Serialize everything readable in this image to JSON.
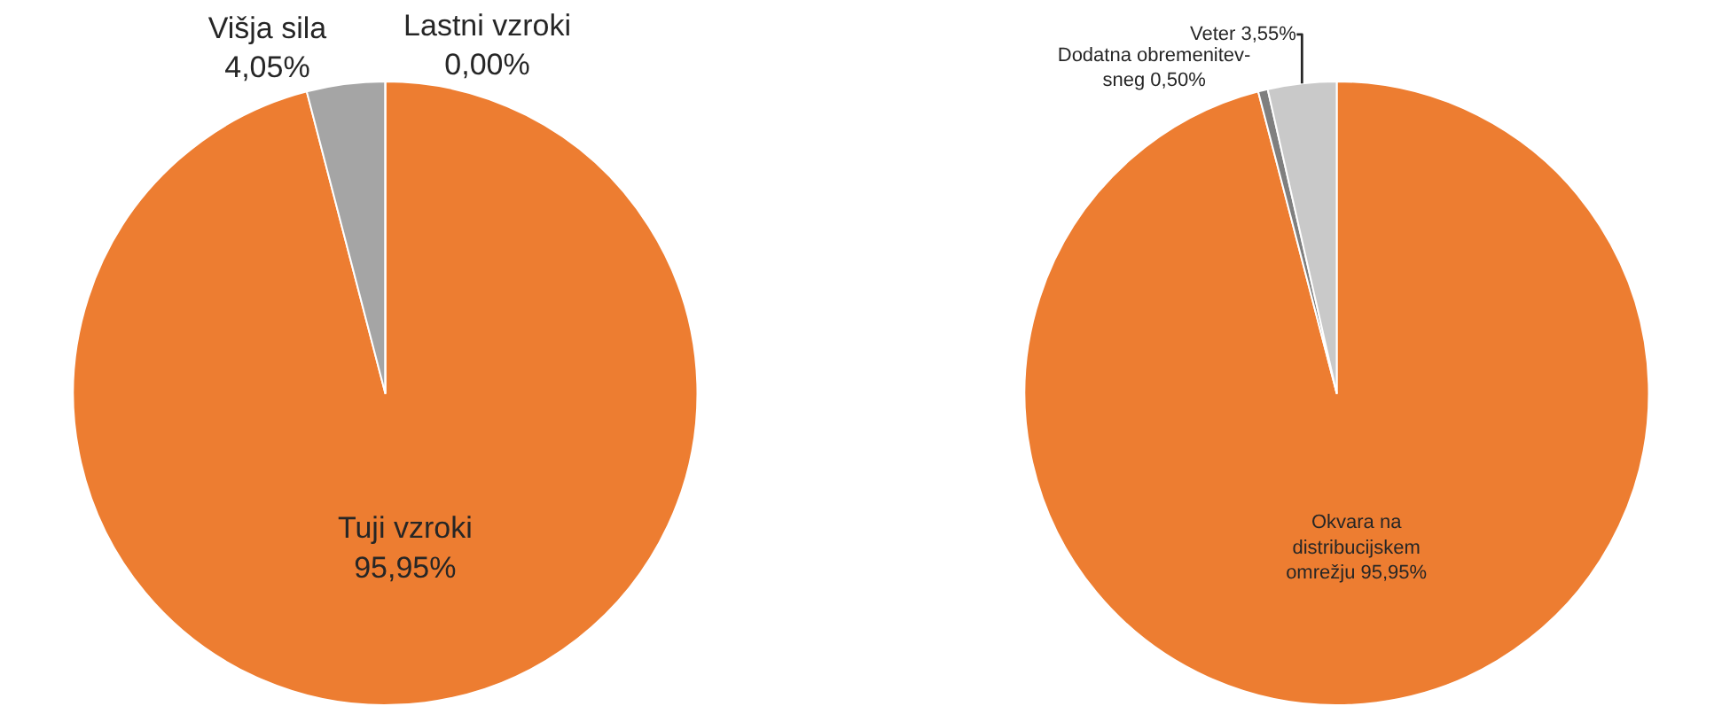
{
  "chart_data": [
    {
      "type": "pie",
      "categories": [
        "Tuji vzroki",
        "Višja sila",
        "Lastni vzroki"
      ],
      "values": [
        95.95,
        4.05,
        0.0
      ],
      "value_labels": [
        "95,95%",
        "4,05%",
        "0,00%"
      ],
      "colors": [
        "#ed7d31",
        "#a5a5a5",
        "#5b9bd5"
      ]
    },
    {
      "type": "pie",
      "categories": [
        "Okvara na distribucijskem omrežju",
        "Dodatna obremenitev-sneg",
        "Veter"
      ],
      "values": [
        95.95,
        0.5,
        3.55
      ],
      "value_labels": [
        "95,95%",
        "0,50%",
        "3,55%"
      ],
      "colors": [
        "#ed7d31",
        "#7f7f7f",
        "#c9c9c9"
      ]
    }
  ]
}
